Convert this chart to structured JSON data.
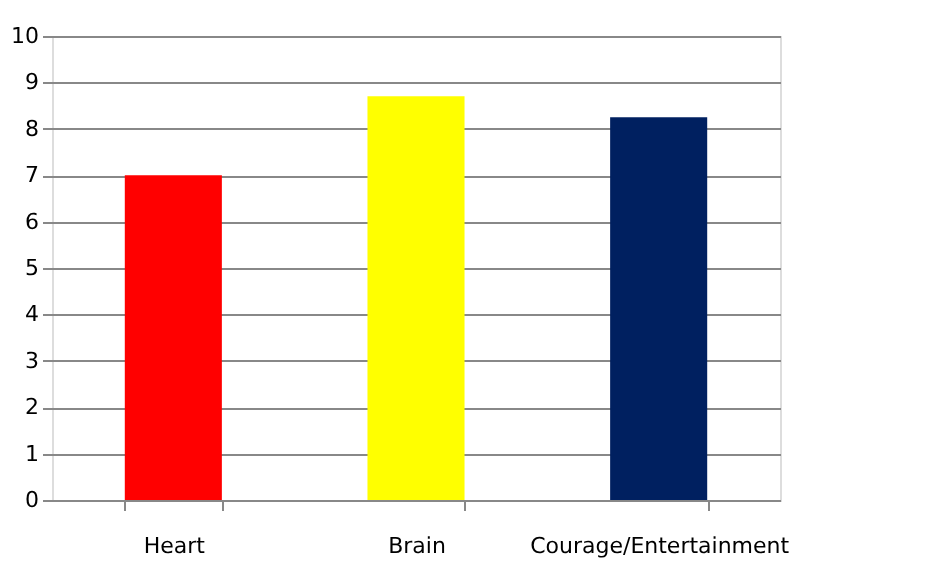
{
  "chart_data": {
    "type": "bar",
    "categories": [
      "Heart",
      "Brain",
      "Courage/Entertainment"
    ],
    "values": [
      7,
      8.7,
      8.25
    ],
    "colors": [
      "#ff0000",
      "#ffff00",
      "#002060"
    ],
    "ylim": [
      0,
      10
    ],
    "yticks": [
      0,
      1,
      2,
      3,
      4,
      5,
      6,
      7,
      8,
      9,
      10
    ],
    "grid": "y"
  }
}
